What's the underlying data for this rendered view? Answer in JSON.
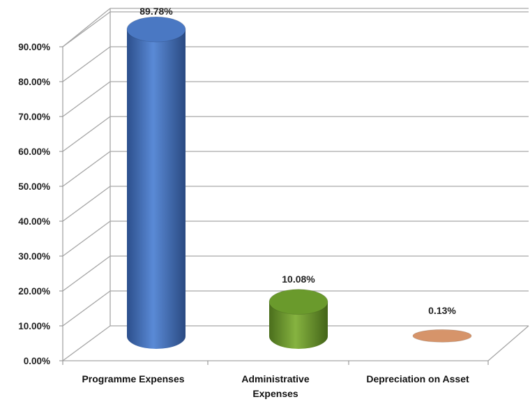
{
  "chart_data": {
    "type": "bar",
    "style": "3d-cylinder",
    "categories": [
      "Programme Expenses",
      "Administrative Expenses",
      "Depreciation on Asset"
    ],
    "category_label_lines": [
      [
        "Programme Expenses"
      ],
      [
        "Administrative",
        "Expenses"
      ],
      [
        "Depreciation on Asset"
      ]
    ],
    "values": [
      89.78,
      10.08,
      0.13
    ],
    "data_labels": [
      "89.78%",
      "10.08%",
      "0.13%"
    ],
    "colors": [
      "#4a78c3",
      "#6a9a2c",
      "#d6946a"
    ],
    "yticks": [
      "0.00%",
      "10.00%",
      "20.00%",
      "30.00%",
      "40.00%",
      "50.00%",
      "60.00%",
      "70.00%",
      "80.00%",
      "90.00%"
    ],
    "ylim": [
      0,
      90
    ],
    "grid": true,
    "legend": "none",
    "title": "",
    "xlabel": "",
    "ylabel": ""
  }
}
